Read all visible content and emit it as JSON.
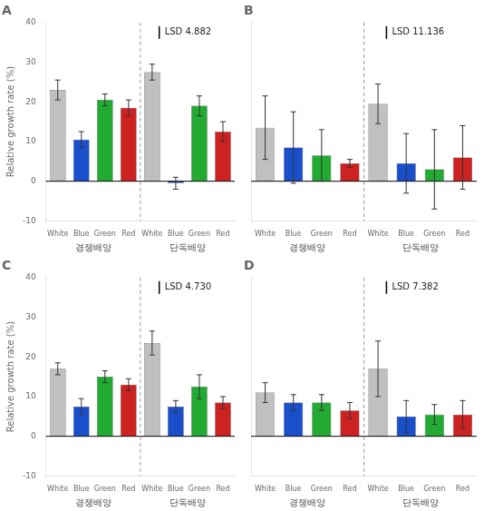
{
  "chart_data": [
    {
      "type": "bar",
      "title": "A",
      "annotations": [
        "LSD 4.882"
      ],
      "categories": [
        "White",
        "Blue",
        "Green",
        "Red",
        "White",
        "Blue",
        "Green",
        "Red"
      ],
      "group_labels": [
        "경쟁배양",
        "단독배양"
      ],
      "values": [
        23.0,
        10.5,
        20.5,
        18.5,
        27.5,
        -0.5,
        19.0,
        12.5
      ],
      "errors": [
        2.5,
        2.0,
        1.5,
        2.0,
        2.0,
        1.5,
        2.5,
        2.5
      ],
      "colors": [
        "#c0c0c0",
        "#1a4fcc",
        "#22aa33",
        "#cc2222",
        "#c0c0c0",
        "#1a4fcc",
        "#22aa33",
        "#cc2222"
      ],
      "ylabel": "Relative growth rate (%)",
      "ylim": [
        -10,
        40
      ],
      "yticks": [
        -10,
        0,
        10,
        20,
        30,
        40
      ],
      "grid": false
    },
    {
      "type": "bar",
      "title": "B",
      "annotations": [
        "LSD 11.136"
      ],
      "categories": [
        "White",
        "Blue",
        "Green",
        "Red",
        "White",
        "Blue",
        "Green",
        "Red"
      ],
      "group_labels": [
        "경쟁배양",
        "단독배양"
      ],
      "values": [
        13.5,
        8.5,
        6.5,
        4.5,
        19.5,
        4.5,
        3.0,
        6.0
      ],
      "errors": [
        8.0,
        9.0,
        6.5,
        1.0,
        5.0,
        7.5,
        10.0,
        8.0
      ],
      "colors": [
        "#c0c0c0",
        "#1a4fcc",
        "#22aa33",
        "#cc2222",
        "#c0c0c0",
        "#1a4fcc",
        "#22aa33",
        "#cc2222"
      ],
      "ylim": [
        -10,
        40
      ],
      "yticks": [
        -10,
        0,
        10,
        20,
        30,
        40
      ],
      "grid": false,
      "tick_labels": "x"
    },
    {
      "type": "bar",
      "title": "C",
      "annotations": [
        "LSD 4.730"
      ],
      "categories": [
        "White",
        "Blue",
        "Green",
        "Red",
        "White",
        "Blue",
        "Green",
        "Red"
      ],
      "group_labels": [
        "경쟁배양",
        "단독배양"
      ],
      "values": [
        17.0,
        7.5,
        15.0,
        13.0,
        23.5,
        7.5,
        12.5,
        8.5
      ],
      "errors": [
        1.5,
        2.0,
        1.5,
        1.5,
        3.0,
        1.5,
        3.0,
        1.5
      ],
      "colors": [
        "#c0c0c0",
        "#1a4fcc",
        "#22aa33",
        "#cc2222",
        "#c0c0c0",
        "#1a4fcc",
        "#22aa33",
        "#cc2222"
      ],
      "ylabel": "Relative growth rate (%)",
      "ylim": [
        -10,
        40
      ],
      "yticks": [
        -10,
        0,
        10,
        20,
        30,
        40
      ],
      "grid": false
    },
    {
      "type": "bar",
      "title": "D",
      "annotations": [
        "LSD 7.382"
      ],
      "categories": [
        "White",
        "Blue",
        "Green",
        "Red",
        "White",
        "Blue",
        "Green",
        "Red"
      ],
      "group_labels": [
        "경쟁배양",
        "단독배양"
      ],
      "values": [
        11.0,
        8.5,
        8.5,
        6.5,
        17.0,
        5.0,
        5.5,
        5.5
      ],
      "errors": [
        2.5,
        2.0,
        2.0,
        2.0,
        7.0,
        4.0,
        2.5,
        3.5
      ],
      "colors": [
        "#c0c0c0",
        "#1a4fcc",
        "#22aa33",
        "#cc2222",
        "#c0c0c0",
        "#1a4fcc",
        "#22aa33",
        "#cc2222"
      ],
      "ylim": [
        -10,
        40
      ],
      "yticks": [
        -10,
        0,
        10,
        20,
        30,
        40
      ],
      "grid": false,
      "tick_labels": "x"
    }
  ]
}
